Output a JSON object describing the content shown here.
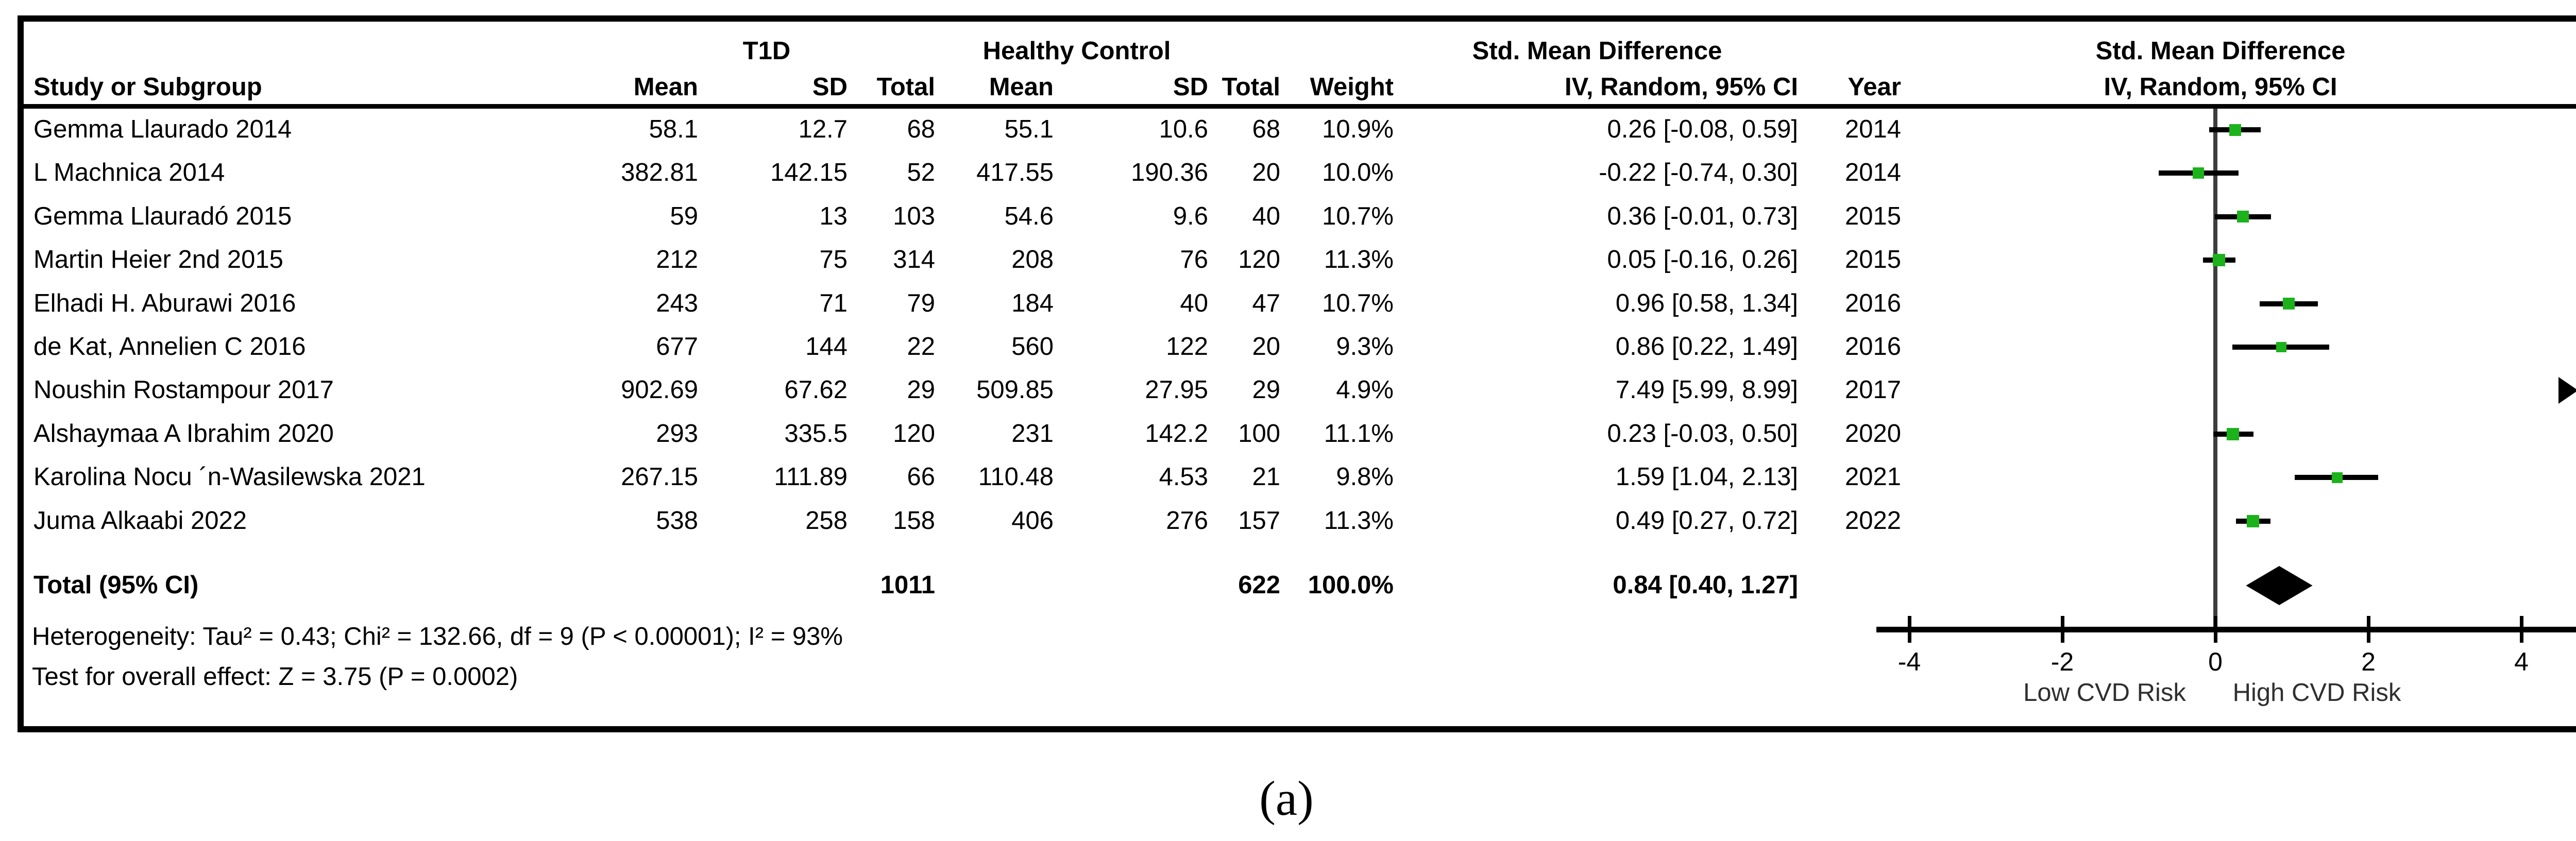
{
  "caption": "(a)",
  "colors": {
    "effect_square": "#1cb21c",
    "ci_line": "#000000",
    "zero_line": "#3d3d3d",
    "summary_diamond": "#000000",
    "frame": "#000000",
    "axis_label_text": "#2f2f2f"
  },
  "header": {
    "group_t1d": "T1D",
    "group_control": "Healthy Control",
    "group_smd_text": "Std. Mean Difference",
    "group_smd_plot": "Std. Mean Difference",
    "study": "Study or Subgroup",
    "mean": "Mean",
    "sd": "SD",
    "total": "Total",
    "mean2": "Mean",
    "sd2": "SD",
    "total2": "Total",
    "weight": "Weight",
    "ci": "IV, Random, 95% CI",
    "year": "Year",
    "ci_plot": "IV, Random, 95% CI"
  },
  "chart_data": {
    "type": "forest",
    "effect_measure": "Std. Mean Difference, IV, Random, 95% CI",
    "axis": {
      "ticks": [
        -4,
        -2,
        0,
        2,
        4
      ],
      "range": [
        -4.55,
        4.74
      ],
      "label_low": "Low CVD Risk",
      "label_high": "High CVD Risk"
    },
    "studies": [
      {
        "name": "Gemma Llaurado 2014",
        "t1d_mean": "58.1",
        "t1d_sd": "12.7",
        "t1d_total": "68",
        "hc_mean": "55.1",
        "hc_sd": "10.6",
        "hc_total": "68",
        "weight": "10.9%",
        "weight_value": 10.9,
        "ci_text": "0.26 [-0.08, 0.59]",
        "year": "2014",
        "est": 0.26,
        "lo": -0.08,
        "hi": 0.59
      },
      {
        "name": "L Machnica 2014",
        "t1d_mean": "382.81",
        "t1d_sd": "142.15",
        "t1d_total": "52",
        "hc_mean": "417.55",
        "hc_sd": "190.36",
        "hc_total": "20",
        "weight": "10.0%",
        "weight_value": 10.0,
        "ci_text": "-0.22 [-0.74, 0.30]",
        "year": "2014",
        "est": -0.22,
        "lo": -0.74,
        "hi": 0.3
      },
      {
        "name": "Gemma Llauradó 2015",
        "t1d_mean": "59",
        "t1d_sd": "13",
        "t1d_total": "103",
        "hc_mean": "54.6",
        "hc_sd": "9.6",
        "hc_total": "40",
        "weight": "10.7%",
        "weight_value": 10.7,
        "ci_text": "0.36 [-0.01, 0.73]",
        "year": "2015",
        "est": 0.36,
        "lo": -0.01,
        "hi": 0.73
      },
      {
        "name": "Martin Heier 2nd 2015",
        "t1d_mean": "212",
        "t1d_sd": "75",
        "t1d_total": "314",
        "hc_mean": "208",
        "hc_sd": "76",
        "hc_total": "120",
        "weight": "11.3%",
        "weight_value": 11.3,
        "ci_text": "0.05 [-0.16, 0.26]",
        "year": "2015",
        "est": 0.05,
        "lo": -0.16,
        "hi": 0.26
      },
      {
        "name": "Elhadi H. Aburawi 2016",
        "t1d_mean": "243",
        "t1d_sd": "71",
        "t1d_total": "79",
        "hc_mean": "184",
        "hc_sd": "40",
        "hc_total": "47",
        "weight": "10.7%",
        "weight_value": 10.7,
        "ci_text": "0.96 [0.58, 1.34]",
        "year": "2016",
        "est": 0.96,
        "lo": 0.58,
        "hi": 1.34
      },
      {
        "name": "de Kat, Annelien C 2016",
        "t1d_mean": "677",
        "t1d_sd": "144",
        "t1d_total": "22",
        "hc_mean": "560",
        "hc_sd": "122",
        "hc_total": "20",
        "weight": "9.3%",
        "weight_value": 9.3,
        "ci_text": "0.86 [0.22, 1.49]",
        "year": "2016",
        "est": 0.86,
        "lo": 0.22,
        "hi": 1.49
      },
      {
        "name": "Noushin Rostampour 2017",
        "t1d_mean": "902.69",
        "t1d_sd": "67.62",
        "t1d_total": "29",
        "hc_mean": "509.85",
        "hc_sd": "27.95",
        "hc_total": "29",
        "weight": "4.9%",
        "weight_value": 4.9,
        "ci_text": "7.49 [5.99, 8.99]",
        "year": "2017",
        "est": 7.49,
        "lo": 5.99,
        "hi": 8.99
      },
      {
        "name": "Alshaymaa A Ibrahim 2020",
        "t1d_mean": "293",
        "t1d_sd": "335.5",
        "t1d_total": "120",
        "hc_mean": "231",
        "hc_sd": "142.2",
        "hc_total": "100",
        "weight": "11.1%",
        "weight_value": 11.1,
        "ci_text": "0.23 [-0.03, 0.50]",
        "year": "2020",
        "est": 0.23,
        "lo": -0.03,
        "hi": 0.5
      },
      {
        "name": "Karolina Nocu ´n-Wasilewska 2021",
        "t1d_mean": "267.15",
        "t1d_sd": "111.89",
        "t1d_total": "66",
        "hc_mean": "110.48",
        "hc_sd": "4.53",
        "hc_total": "21",
        "weight": "9.8%",
        "weight_value": 9.8,
        "ci_text": "1.59 [1.04, 2.13]",
        "year": "2021",
        "est": 1.59,
        "lo": 1.04,
        "hi": 2.13
      },
      {
        "name": "Juma Alkaabi 2022",
        "t1d_mean": "538",
        "t1d_sd": "258",
        "t1d_total": "158",
        "hc_mean": "406",
        "hc_sd": "276",
        "hc_total": "157",
        "weight": "11.3%",
        "weight_value": 11.3,
        "ci_text": "0.49 [0.27, 0.72]",
        "year": "2022",
        "est": 0.49,
        "lo": 0.27,
        "hi": 0.72
      }
    ],
    "total": {
      "label": "Total (95% CI)",
      "t1d_total": "1011",
      "hc_total": "622",
      "weight": "100.0%",
      "ci_text": "0.84 [0.40, 1.27]",
      "est": 0.84,
      "lo": 0.4,
      "hi": 1.27
    }
  },
  "footnotes": {
    "heterogeneity": "Heterogeneity: Tau² = 0.43; Chi² = 132.66, df = 9 (P < 0.00001); I² = 93%",
    "overall_effect": "Test for overall effect: Z = 3.75 (P = 0.0002)"
  }
}
